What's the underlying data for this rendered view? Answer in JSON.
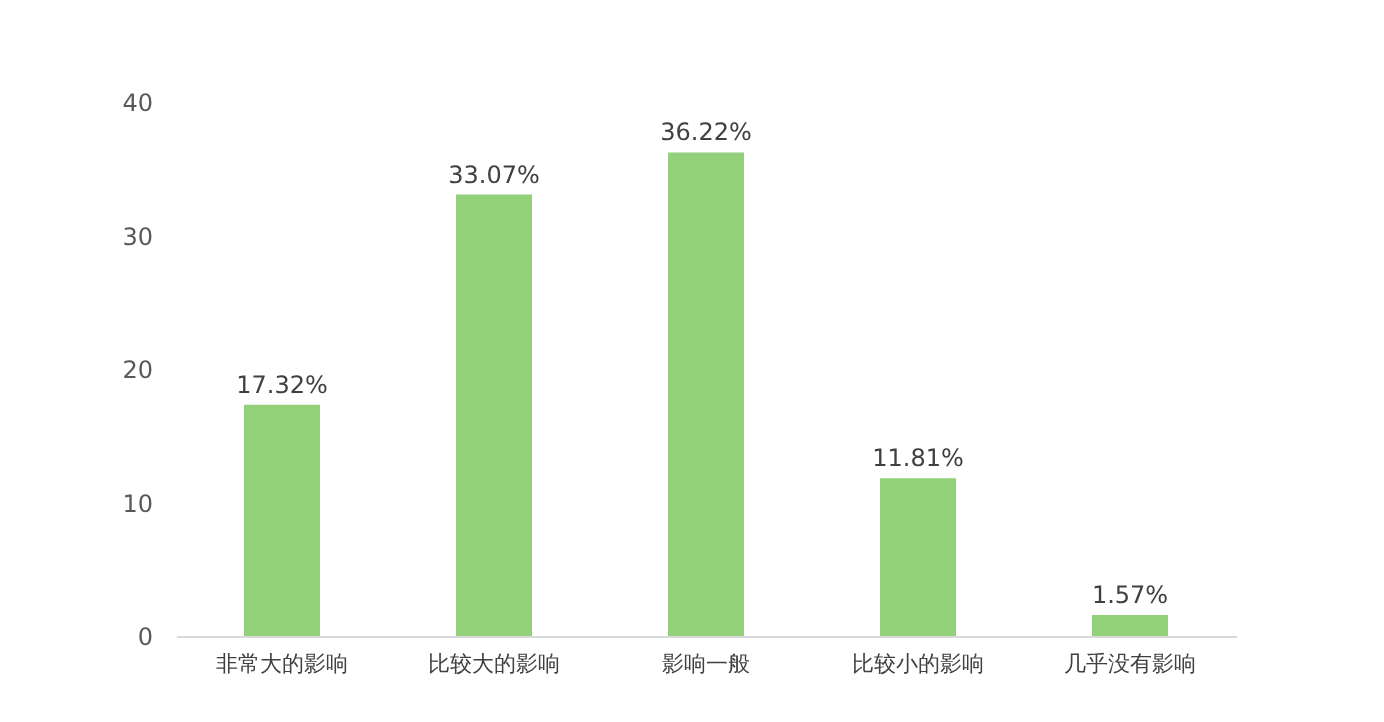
{
  "chart_data": {
    "type": "bar",
    "categories": [
      "非常大的影响",
      "比较大的影响",
      "影响一般",
      "比较小的影响",
      "几乎没有影响"
    ],
    "values": [
      17.32,
      33.07,
      36.22,
      11.81,
      1.57
    ],
    "value_labels": [
      "17.32%",
      "33.07%",
      "36.22%",
      "11.81%",
      "1.57%"
    ],
    "color": "#92d07a",
    "ylim": [
      0,
      40
    ],
    "yticks": [
      0,
      10,
      20,
      30,
      40
    ],
    "grid": false
  }
}
